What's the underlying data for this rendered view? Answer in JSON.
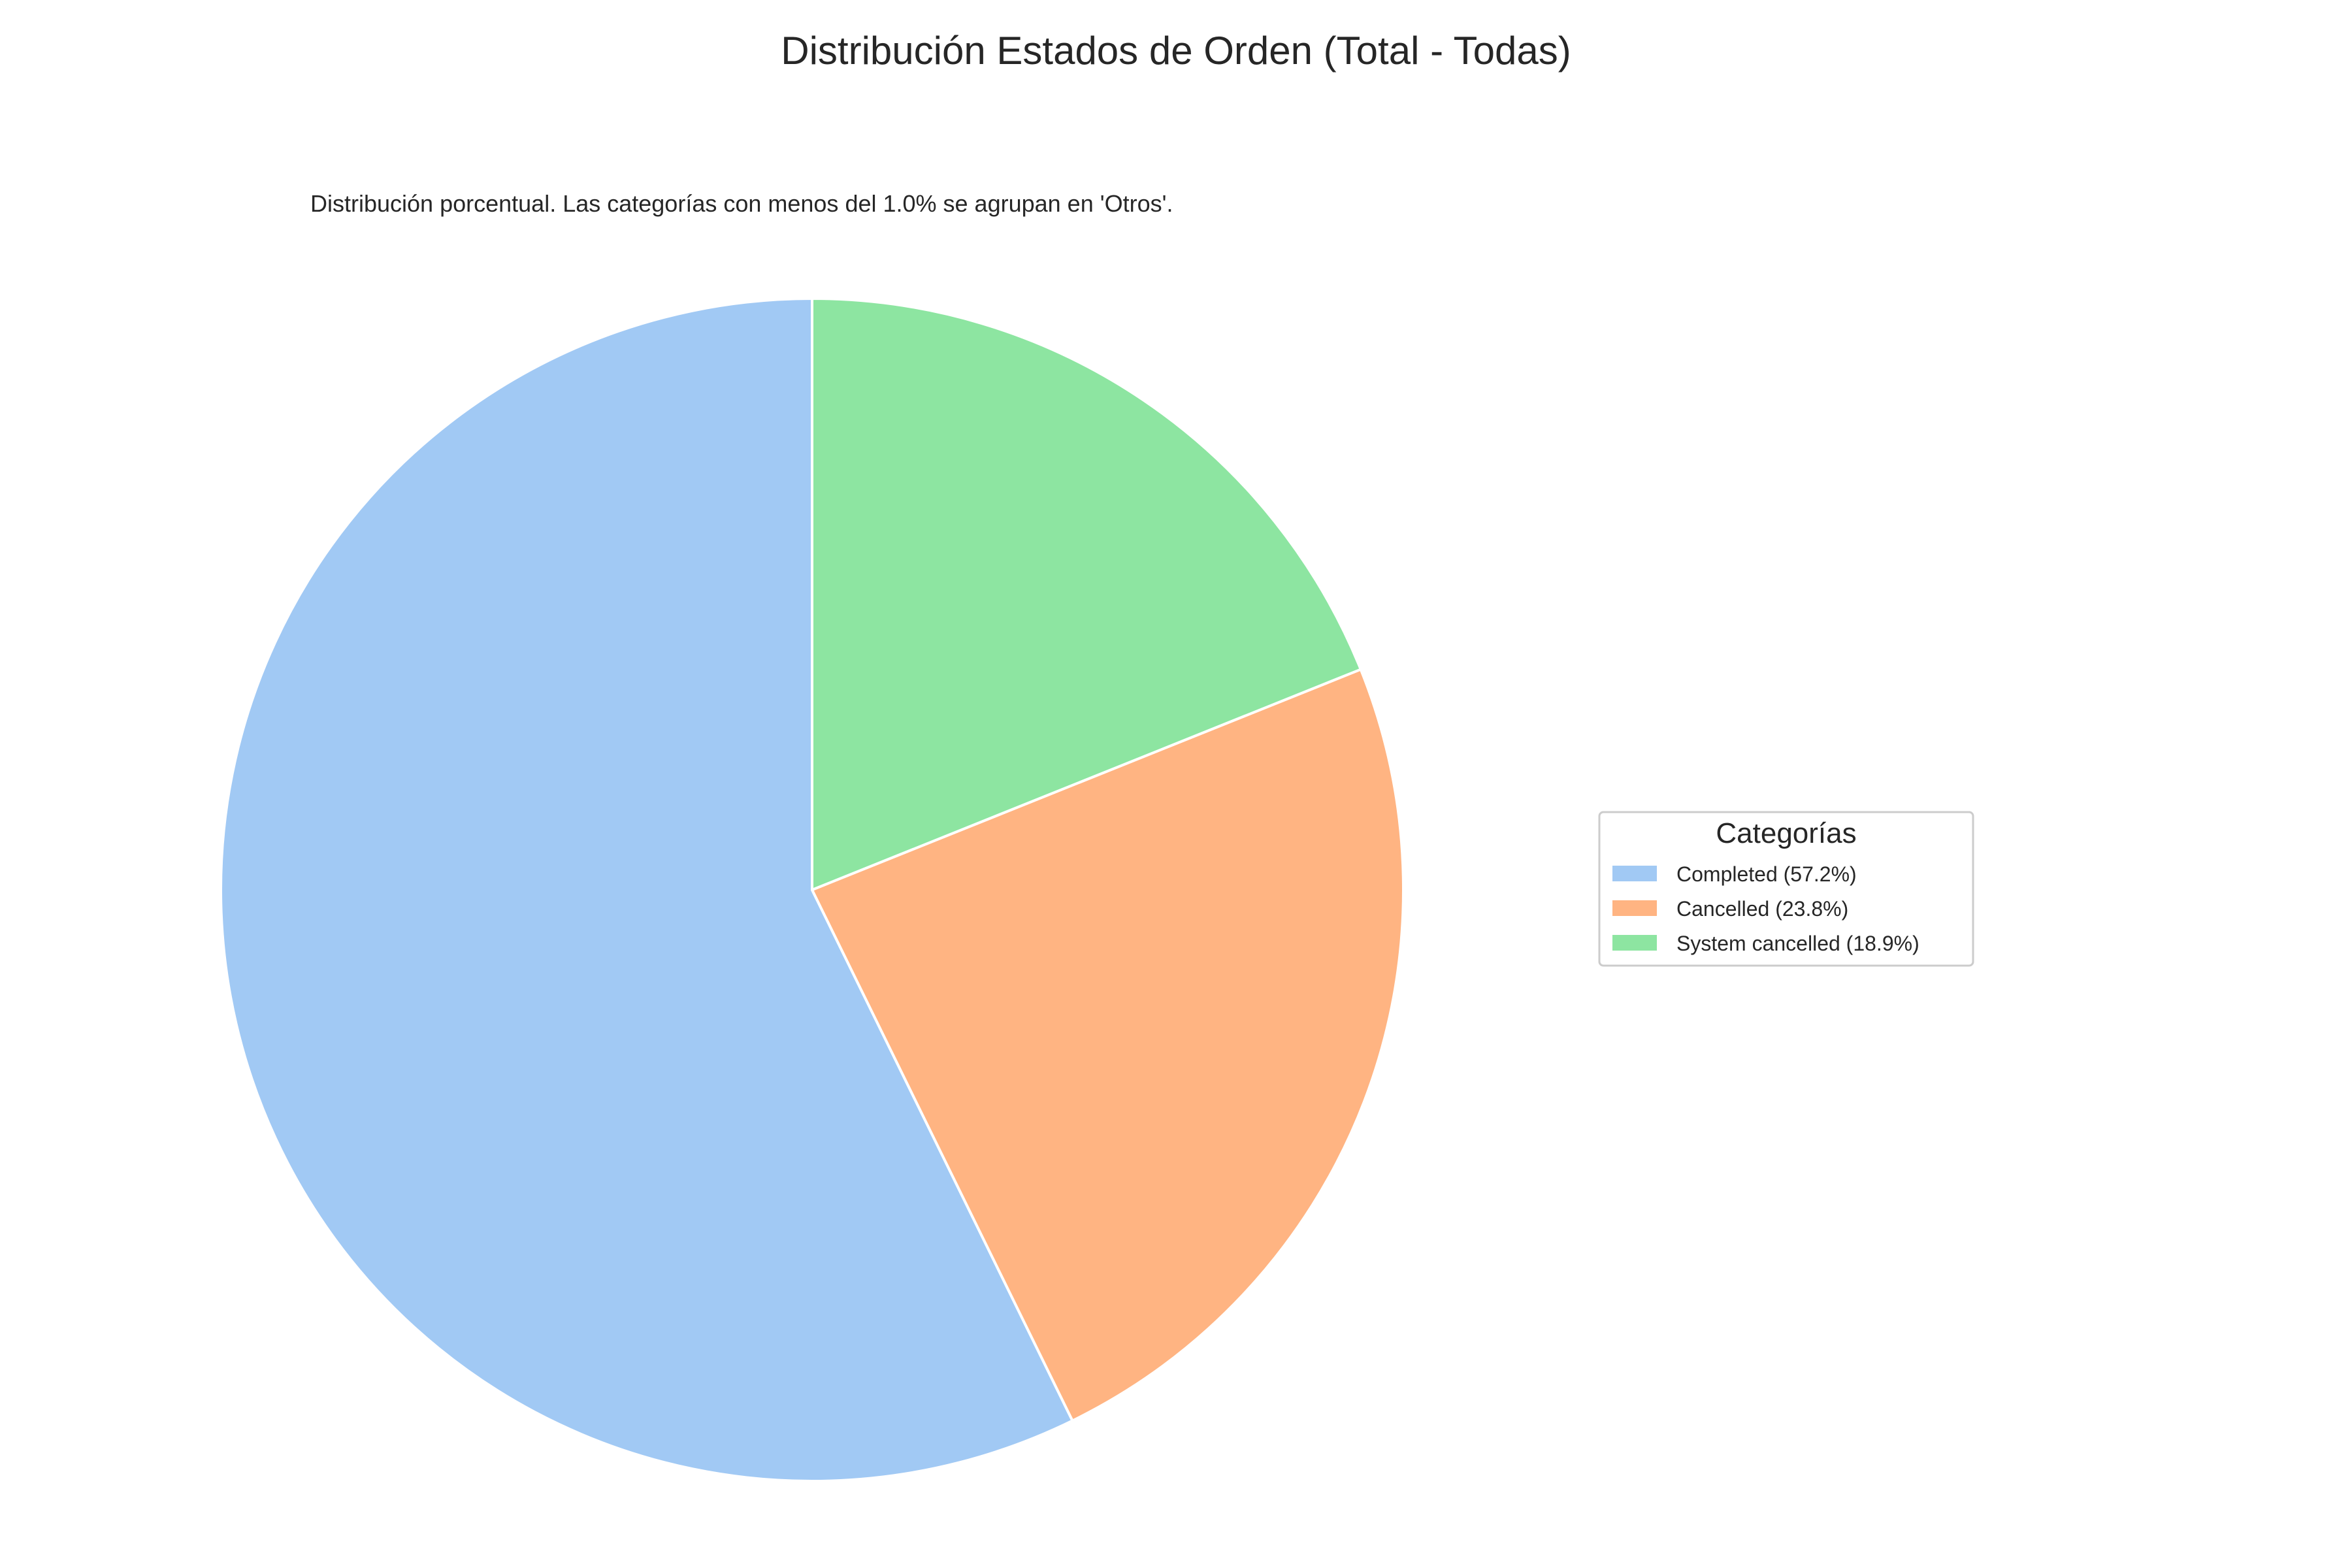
{
  "chart_data": {
    "type": "pie",
    "title": "Distribución Estados de Orden (Total - Todas)",
    "subtitle": "Distribución porcentual. Las categorías con menos del 1.0% se agrupan en 'Otros'.",
    "slices": [
      {
        "label": "Completed",
        "value": 57.2,
        "legend_label": "Completed (57.2%)",
        "color": "#a1c9f4"
      },
      {
        "label": "Cancelled",
        "value": 23.8,
        "legend_label": "Cancelled (23.8%)",
        "color": "#ffb482"
      },
      {
        "label": "System cancelled",
        "value": 18.9,
        "legend_label": "System cancelled (18.9%)",
        "color": "#8de5a1"
      }
    ],
    "start_angle_deg": 90,
    "direction": "counterclockwise",
    "slice_edge_color": "#ffffff",
    "legend": {
      "title": "Categorías",
      "placement": "right"
    }
  }
}
